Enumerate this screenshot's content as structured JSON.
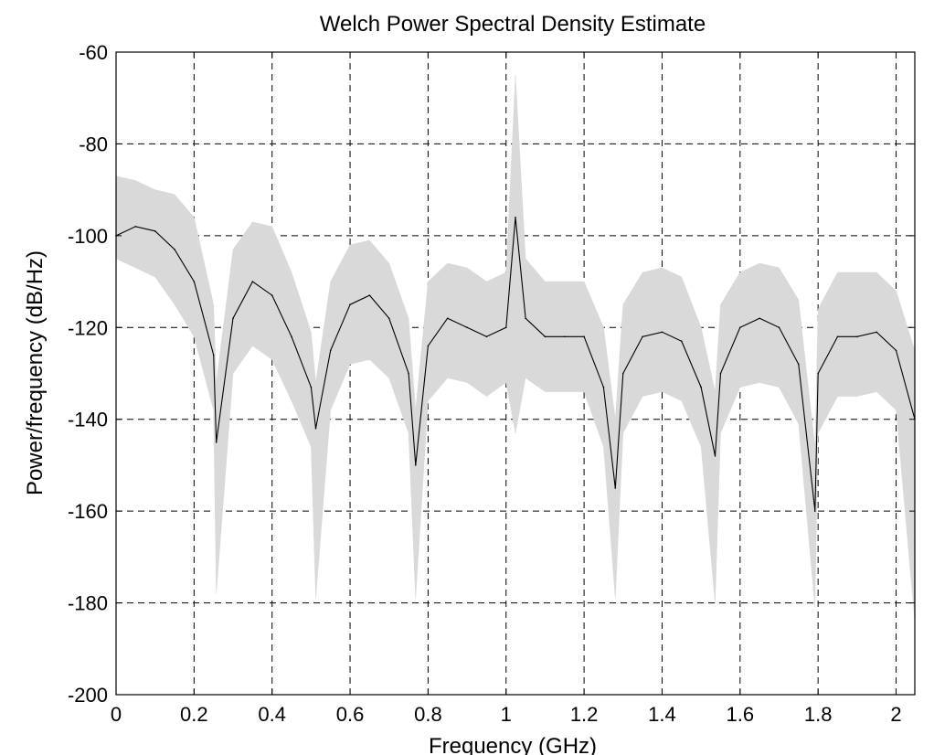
{
  "chart_data": {
    "type": "line",
    "title": "Welch Power Spectral Density Estimate",
    "xlabel": "Frequency (GHz)",
    "ylabel": "Power/frequency (dB/Hz)",
    "xlim": [
      0,
      2.048
    ],
    "ylim": [
      -200,
      -60
    ],
    "xticks": [
      0,
      0.2,
      0.4,
      0.6,
      0.8,
      1,
      1.2,
      1.4,
      1.6,
      1.8,
      2
    ],
    "xtick_labels": [
      "0",
      "0.2",
      "0.4",
      "0.6",
      "0.8",
      "1",
      "1.2",
      "1.4",
      "1.6",
      "1.8",
      "2"
    ],
    "yticks": [
      -200,
      -180,
      -160,
      -140,
      -120,
      -100,
      -80,
      -60
    ],
    "ytick_labels": [
      "-200",
      "-180",
      "-160",
      "-140",
      "-120",
      "-100",
      "-80",
      "-60"
    ],
    "grid": true,
    "grid_style": "dashed",
    "colors": {
      "line": "#000000",
      "band": "#d9d9d9",
      "grid": "#000000"
    },
    "series": [
      {
        "role": "estimate",
        "x": [
          0,
          0.05,
          0.1,
          0.15,
          0.2,
          0.25,
          0.257,
          0.3,
          0.35,
          0.4,
          0.45,
          0.5,
          0.512,
          0.55,
          0.6,
          0.65,
          0.7,
          0.75,
          0.768,
          0.8,
          0.85,
          0.9,
          0.95,
          1.0,
          1.024,
          1.05,
          1.1,
          1.15,
          1.2,
          1.25,
          1.28,
          1.3,
          1.35,
          1.4,
          1.45,
          1.5,
          1.536,
          1.55,
          1.6,
          1.65,
          1.7,
          1.75,
          1.792,
          1.8,
          1.85,
          1.9,
          1.95,
          2.0,
          2.048
        ],
        "values": [
          -100,
          -98,
          -99,
          -103,
          -110,
          -126,
          -145,
          -118,
          -110,
          -113,
          -122,
          -133,
          -142,
          -125,
          -115,
          -113,
          -118,
          -130,
          -150,
          -124,
          -118,
          -120,
          -122,
          -120,
          -96,
          -118,
          -122,
          -122,
          -122,
          -133,
          -155,
          -130,
          -122,
          -121,
          -123,
          -133,
          -148,
          -130,
          -120,
          -118,
          -120,
          -128,
          -160,
          -130,
          -122,
          -122,
          -121,
          -125,
          -140
        ]
      },
      {
        "role": "band-upper",
        "x": [
          0,
          0.05,
          0.1,
          0.15,
          0.2,
          0.25,
          0.257,
          0.3,
          0.35,
          0.4,
          0.45,
          0.5,
          0.512,
          0.55,
          0.6,
          0.65,
          0.7,
          0.75,
          0.768,
          0.8,
          0.85,
          0.9,
          0.95,
          1.0,
          1.024,
          1.05,
          1.1,
          1.15,
          1.2,
          1.25,
          1.28,
          1.3,
          1.35,
          1.4,
          1.45,
          1.5,
          1.536,
          1.55,
          1.6,
          1.65,
          1.7,
          1.75,
          1.792,
          1.8,
          1.85,
          1.9,
          1.95,
          2.0,
          2.048
        ],
        "values": [
          -87,
          -88,
          -90,
          -91,
          -96,
          -115,
          -132,
          -103,
          -97,
          -98,
          -108,
          -121,
          -132,
          -110,
          -102,
          -101,
          -106,
          -118,
          -138,
          -110,
          -106,
          -107,
          -110,
          -108,
          -65,
          -105,
          -110,
          -110,
          -110,
          -120,
          -140,
          -115,
          -108,
          -107,
          -109,
          -120,
          -134,
          -115,
          -108,
          -106,
          -107,
          -114,
          -146,
          -116,
          -108,
          -108,
          -108,
          -112,
          -125
        ]
      },
      {
        "role": "band-lower",
        "x": [
          0,
          0.05,
          0.1,
          0.15,
          0.2,
          0.25,
          0.257,
          0.3,
          0.35,
          0.4,
          0.45,
          0.5,
          0.512,
          0.55,
          0.6,
          0.65,
          0.7,
          0.75,
          0.768,
          0.8,
          0.85,
          0.9,
          0.95,
          1.0,
          1.024,
          1.05,
          1.1,
          1.15,
          1.2,
          1.25,
          1.28,
          1.3,
          1.35,
          1.4,
          1.45,
          1.5,
          1.536,
          1.55,
          1.6,
          1.65,
          1.7,
          1.75,
          1.792,
          1.8,
          1.85,
          1.9,
          1.95,
          2.0,
          2.048
        ],
        "values": [
          -105,
          -107,
          -109,
          -115,
          -122,
          -138,
          -178,
          -130,
          -124,
          -127,
          -136,
          -146,
          -179,
          -138,
          -128,
          -127,
          -131,
          -143,
          -179,
          -136,
          -131,
          -132,
          -135,
          -132,
          -143,
          -131,
          -134,
          -134,
          -134,
          -146,
          -179,
          -143,
          -135,
          -134,
          -136,
          -146,
          -180,
          -143,
          -133,
          -132,
          -133,
          -141,
          -181,
          -143,
          -135,
          -135,
          -134,
          -138,
          -184
        ]
      }
    ]
  }
}
